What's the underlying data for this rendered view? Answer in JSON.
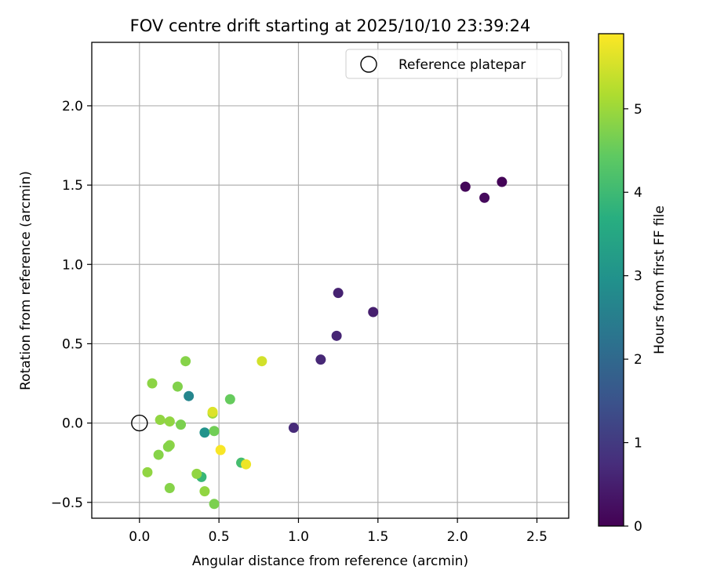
{
  "chart_data": {
    "type": "scatter",
    "title": "FOV centre drift starting at 2025/10/10 23:39:24",
    "xlabel": "Angular distance from reference (arcmin)",
    "ylabel": "Rotation from reference (arcmin)",
    "xlim": [
      -0.3,
      2.7
    ],
    "ylim": [
      -0.6,
      2.4
    ],
    "xticks": [
      0.0,
      0.5,
      1.0,
      1.5,
      2.0,
      2.5
    ],
    "xtick_labels": [
      "0.0",
      "0.5",
      "1.0",
      "1.5",
      "2.0",
      "2.5"
    ],
    "yticks": [
      -0.5,
      0.0,
      0.5,
      1.0,
      1.5,
      2.0
    ],
    "ytick_labels": [
      "−0.5",
      "0.0",
      "0.5",
      "1.0",
      "1.5",
      "2.0"
    ],
    "grid": true,
    "legend": {
      "position": "top-right",
      "entries": [
        {
          "label": "Reference platepar",
          "marker": "open-circle"
        }
      ]
    },
    "reference_point": {
      "x": 0.0,
      "y": 0.0
    },
    "colorbar": {
      "label": "Hours from first FF file",
      "min": 0.0,
      "max": 5.9,
      "ticks": [
        0,
        1,
        2,
        3,
        4,
        5
      ],
      "tick_labels": [
        "0",
        "1",
        "2",
        "3",
        "4",
        "5"
      ],
      "colormap": "viridis"
    },
    "points": [
      {
        "x": 2.28,
        "y": 1.52,
        "hours": 0.05
      },
      {
        "x": 2.05,
        "y": 1.49,
        "hours": 0.1
      },
      {
        "x": 2.17,
        "y": 1.42,
        "hours": 0.15
      },
      {
        "x": 1.47,
        "y": 0.7,
        "hours": 0.5
      },
      {
        "x": 1.25,
        "y": 0.82,
        "hours": 0.55
      },
      {
        "x": 1.24,
        "y": 0.55,
        "hours": 0.6
      },
      {
        "x": 1.14,
        "y": 0.4,
        "hours": 0.65
      },
      {
        "x": 0.97,
        "y": -0.03,
        "hours": 0.7
      },
      {
        "x": 0.31,
        "y": 0.17,
        "hours": 2.7
      },
      {
        "x": 0.41,
        "y": -0.06,
        "hours": 3.0
      },
      {
        "x": 0.39,
        "y": -0.34,
        "hours": 3.9
      },
      {
        "x": 0.64,
        "y": -0.25,
        "hours": 4.1
      },
      {
        "x": 0.57,
        "y": 0.15,
        "hours": 4.5
      },
      {
        "x": 0.47,
        "y": -0.05,
        "hours": 4.6
      },
      {
        "x": 0.26,
        "y": -0.01,
        "hours": 4.7
      },
      {
        "x": 0.24,
        "y": 0.23,
        "hours": 4.75
      },
      {
        "x": 0.29,
        "y": 0.39,
        "hours": 4.8
      },
      {
        "x": 0.08,
        "y": 0.25,
        "hours": 4.85
      },
      {
        "x": 0.13,
        "y": 0.02,
        "hours": 4.9
      },
      {
        "x": 0.19,
        "y": 0.01,
        "hours": 4.9
      },
      {
        "x": 0.12,
        "y": -0.2,
        "hours": 4.8
      },
      {
        "x": 0.19,
        "y": -0.14,
        "hours": 4.85
      },
      {
        "x": 0.18,
        "y": -0.15,
        "hours": 4.8
      },
      {
        "x": 0.05,
        "y": -0.31,
        "hours": 4.9
      },
      {
        "x": 0.19,
        "y": -0.41,
        "hours": 4.8
      },
      {
        "x": 0.36,
        "y": -0.32,
        "hours": 4.9
      },
      {
        "x": 0.41,
        "y": -0.43,
        "hours": 4.9
      },
      {
        "x": 0.47,
        "y": -0.51,
        "hours": 4.7
      },
      {
        "x": 0.46,
        "y": 0.06,
        "hours": 5.0
      },
      {
        "x": 0.46,
        "y": 0.07,
        "hours": 5.6
      },
      {
        "x": 0.77,
        "y": 0.39,
        "hours": 5.5
      },
      {
        "x": 0.51,
        "y": -0.17,
        "hours": 5.85
      },
      {
        "x": 0.67,
        "y": -0.26,
        "hours": 5.75
      }
    ]
  }
}
